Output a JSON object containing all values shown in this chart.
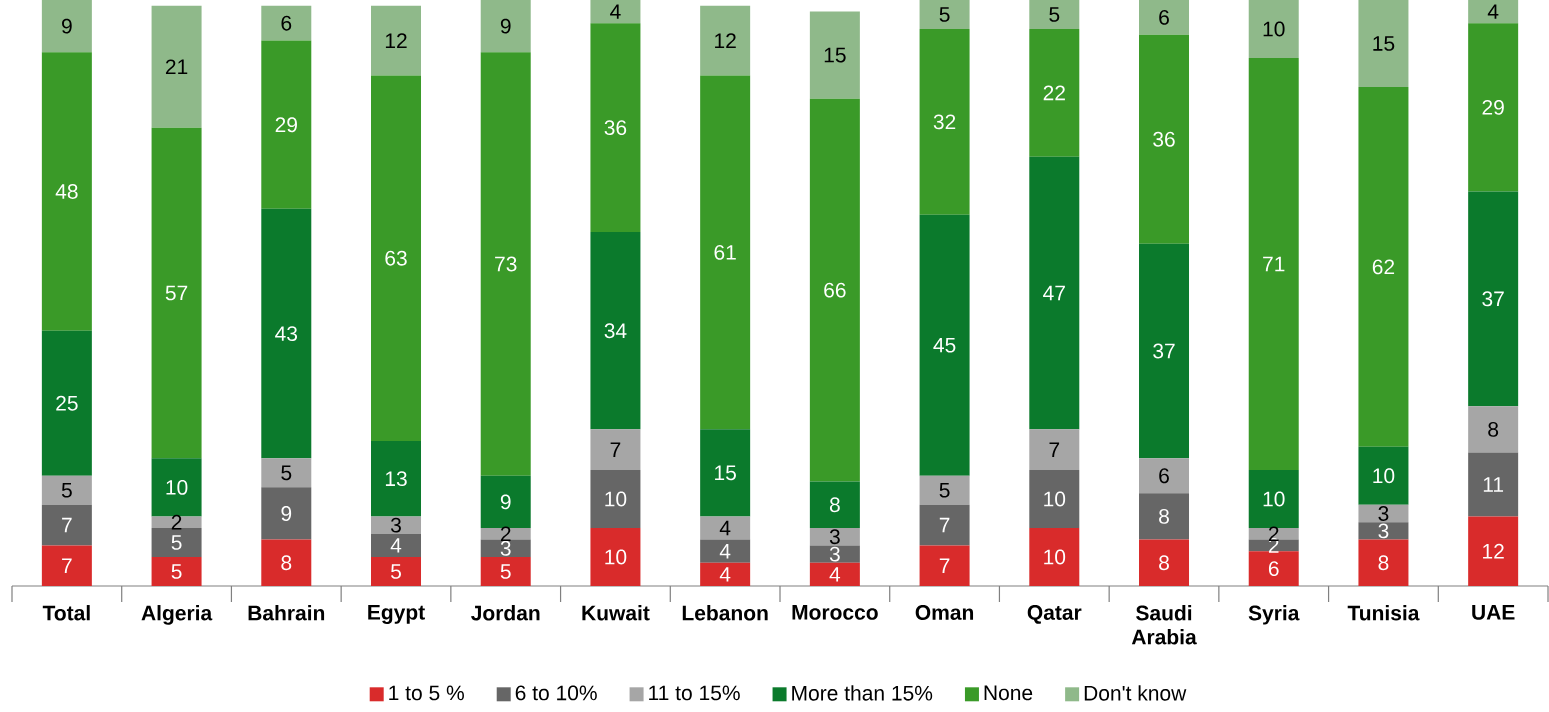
{
  "chart_data": {
    "type": "bar",
    "stacked": true,
    "data_labels": true,
    "legend": "bottom",
    "categories": [
      "Total",
      "Algeria",
      "Bahrain",
      "Egypt",
      "Jordan",
      "Kuwait",
      "Lebanon",
      "Morocco",
      "Oman",
      "Qatar",
      "Saudi Arabia",
      "Syria",
      "Tunisia",
      "UAE"
    ],
    "series": [
      {
        "name": "1 to 5 %",
        "color": "#d92b2b",
        "values": [
          7,
          5,
          8,
          5,
          5,
          10,
          4,
          4,
          7,
          10,
          8,
          6,
          8,
          12
        ]
      },
      {
        "name": "6 to 10%",
        "color": "#666666",
        "values": [
          7,
          5,
          9,
          4,
          3,
          10,
          4,
          3,
          7,
          10,
          8,
          2,
          3,
          11
        ]
      },
      {
        "name": "11 to 15%",
        "color": "#a6a6a6",
        "values": [
          5,
          2,
          5,
          3,
          2,
          7,
          4,
          3,
          5,
          7,
          6,
          2,
          3,
          8
        ]
      },
      {
        "name": "More than 15%",
        "color": "#0b7a2c",
        "values": [
          25,
          10,
          43,
          13,
          9,
          34,
          15,
          8,
          45,
          47,
          37,
          10,
          10,
          37
        ]
      },
      {
        "name": "None",
        "color": "#3a9a28",
        "values": [
          48,
          57,
          29,
          63,
          73,
          36,
          61,
          66,
          32,
          22,
          36,
          71,
          62,
          29
        ]
      },
      {
        "name": "Don't know",
        "color": "#8fb98a",
        "values": [
          9,
          21,
          6,
          12,
          9,
          4,
          12,
          15,
          5,
          5,
          6,
          10,
          15,
          4
        ]
      }
    ]
  }
}
